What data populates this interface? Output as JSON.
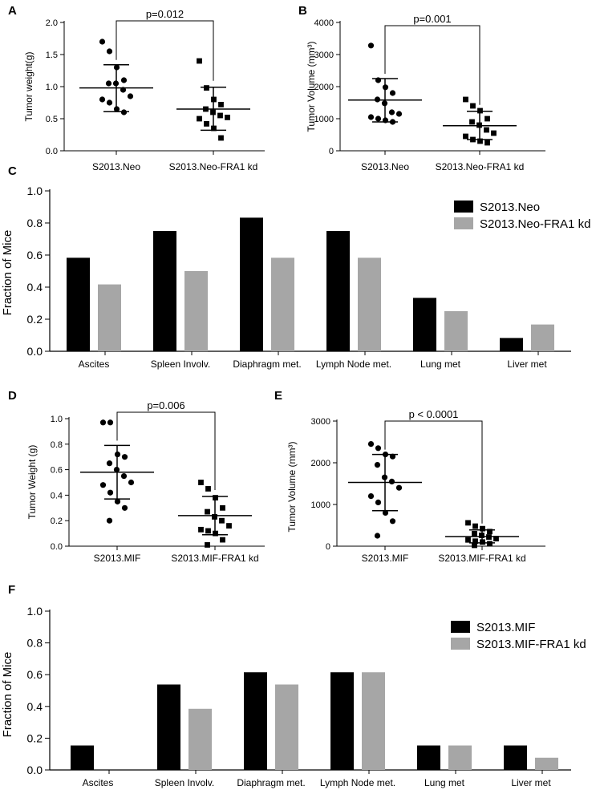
{
  "colors": {
    "group1": "#000000",
    "group2": "#a6a6a6",
    "axis": "#000000"
  },
  "chart_data": [
    {
      "id": "A",
      "type": "scatter",
      "panel_label": "A",
      "ylabel": "Tumor weight(g)",
      "ylim": [
        0,
        2.0
      ],
      "yticks": [
        0.0,
        0.5,
        1.0,
        1.5,
        2.0
      ],
      "ytick_labels": [
        "0.0",
        "0.5",
        "1.0",
        "1.5",
        "2.0"
      ],
      "categories": [
        "S2013.Neo",
        "S2013.Neo-FRA1 kd"
      ],
      "series": [
        {
          "name": "S2013.Neo",
          "marker": "circle",
          "mean": 0.98,
          "sd_low": 0.61,
          "sd_high": 1.34,
          "values": [
            1.7,
            1.55,
            1.3,
            1.1,
            1.05,
            1.05,
            0.95,
            0.85,
            0.8,
            0.75,
            0.65,
            0.6
          ]
        },
        {
          "name": "S2013.Neo-FRA1 kd",
          "marker": "square",
          "mean": 0.65,
          "sd_low": 0.32,
          "sd_high": 0.99,
          "values": [
            1.4,
            0.98,
            0.8,
            0.72,
            0.65,
            0.6,
            0.55,
            0.52,
            0.5,
            0.42,
            0.35,
            0.2
          ]
        }
      ],
      "p_value": "p=0.012"
    },
    {
      "id": "B",
      "type": "scatter",
      "panel_label": "B",
      "ylabel": "Tumor Volume (mm³)",
      "ylim": [
        0,
        4000
      ],
      "yticks": [
        0,
        1000,
        2000,
        3000,
        4000
      ],
      "ytick_labels": [
        "0",
        "1000",
        "2000",
        "3000",
        "4000"
      ],
      "categories": [
        "S2013.Neo",
        "S2013.Neo-FRA1 kd"
      ],
      "series": [
        {
          "name": "S2013.Neo",
          "marker": "circle",
          "mean": 1580,
          "sd_low": 900,
          "sd_high": 2250,
          "values": [
            3280,
            2200,
            1980,
            1800,
            1600,
            1480,
            1200,
            1150,
            1050,
            1000,
            950,
            900
          ]
        },
        {
          "name": "S2013.Neo-FRA1 kd",
          "marker": "square",
          "mean": 780,
          "sd_low": 350,
          "sd_high": 1230,
          "values": [
            1600,
            1400,
            1250,
            1000,
            900,
            800,
            650,
            550,
            450,
            350,
            300,
            250
          ]
        }
      ],
      "p_value": "p=0.001"
    },
    {
      "id": "C",
      "type": "bar",
      "panel_label": "C",
      "ylabel": "Fraction of Mice",
      "ylim": [
        0,
        1.0
      ],
      "yticks": [
        0.0,
        0.2,
        0.4,
        0.6,
        0.8,
        1.0
      ],
      "ytick_labels": [
        "0.0",
        "0.2",
        "0.4",
        "0.6",
        "0.8",
        "1.0"
      ],
      "categories": [
        "Ascites",
        "Spleen Involv.",
        "Diaphragm met.",
        "Lymph Node met.",
        "Lung met",
        "Liver met"
      ],
      "series": [
        {
          "name": "S2013.Neo",
          "values": [
            0.583,
            0.75,
            0.833,
            0.75,
            0.333,
            0.083
          ]
        },
        {
          "name": "S2013.Neo-FRA1 kd",
          "values": [
            0.417,
            0.5,
            0.583,
            0.583,
            0.25,
            0.167
          ]
        }
      ],
      "legend_position": "top-right"
    },
    {
      "id": "D",
      "type": "scatter",
      "panel_label": "D",
      "ylabel": "Tumor Weight (g)",
      "ylim": [
        0,
        1.0
      ],
      "yticks": [
        0.0,
        0.2,
        0.4,
        0.6,
        0.8,
        1.0
      ],
      "ytick_labels": [
        "0.0",
        "0.2",
        "0.4",
        "0.6",
        "0.8",
        "1.0"
      ],
      "categories": [
        "S2013.MIF",
        "S2013.MIF-FRA1 kd"
      ],
      "series": [
        {
          "name": "S2013.MIF",
          "marker": "circle",
          "mean": 0.58,
          "sd_low": 0.37,
          "sd_high": 0.79,
          "values": [
            0.97,
            0.97,
            0.72,
            0.7,
            0.65,
            0.6,
            0.55,
            0.5,
            0.48,
            0.42,
            0.35,
            0.3,
            0.2
          ]
        },
        {
          "name": "S2013.MIF-FRA1 kd",
          "marker": "square",
          "mean": 0.24,
          "sd_low": 0.09,
          "sd_high": 0.39,
          "values": [
            0.5,
            0.45,
            0.38,
            0.3,
            0.27,
            0.23,
            0.2,
            0.16,
            0.13,
            0.12,
            0.1,
            0.05,
            0.01
          ]
        }
      ],
      "p_value": "p=0.006"
    },
    {
      "id": "E",
      "type": "scatter",
      "panel_label": "E",
      "ylabel": "Tumor Volume (mm³)",
      "ylim": [
        0,
        3000
      ],
      "yticks": [
        0,
        1000,
        2000,
        3000
      ],
      "ytick_labels": [
        "0",
        "1000",
        "2000",
        "3000"
      ],
      "categories": [
        "S2013.MIF",
        "S2013.MIF-FRA1 kd"
      ],
      "series": [
        {
          "name": "S2013.MIF",
          "marker": "circle",
          "mean": 1530,
          "sd_low": 850,
          "sd_high": 2200,
          "values": [
            2450,
            2350,
            2200,
            2150,
            1950,
            1650,
            1550,
            1400,
            1200,
            1050,
            800,
            600,
            250
          ]
        },
        {
          "name": "S2013.MIF-FRA1 kd",
          "marker": "square",
          "mean": 230,
          "sd_low": 80,
          "sd_high": 390,
          "values": [
            560,
            480,
            420,
            350,
            300,
            260,
            220,
            180,
            150,
            120,
            100,
            60,
            20
          ]
        }
      ],
      "p_value": "p < 0.0001"
    },
    {
      "id": "F",
      "type": "bar",
      "panel_label": "F",
      "ylabel": "Fraction of Mice",
      "ylim": [
        0,
        1.0
      ],
      "yticks": [
        0.0,
        0.2,
        0.4,
        0.6,
        0.8,
        1.0
      ],
      "ytick_labels": [
        "0.0",
        "0.2",
        "0.4",
        "0.6",
        "0.8",
        "1.0"
      ],
      "categories": [
        "Ascites",
        "Spleen Involv.",
        "Diaphragm met.",
        "Lymph Node met.",
        "Lung met",
        "Liver met"
      ],
      "series": [
        {
          "name": "S2013.MIF",
          "values": [
            0.154,
            0.538,
            0.615,
            0.615,
            0.154,
            0.154
          ]
        },
        {
          "name": "S2013.MIF-FRA1 kd",
          "values": [
            0.0,
            0.385,
            0.538,
            0.615,
            0.154,
            0.077
          ]
        }
      ],
      "legend_position": "top-right"
    }
  ]
}
